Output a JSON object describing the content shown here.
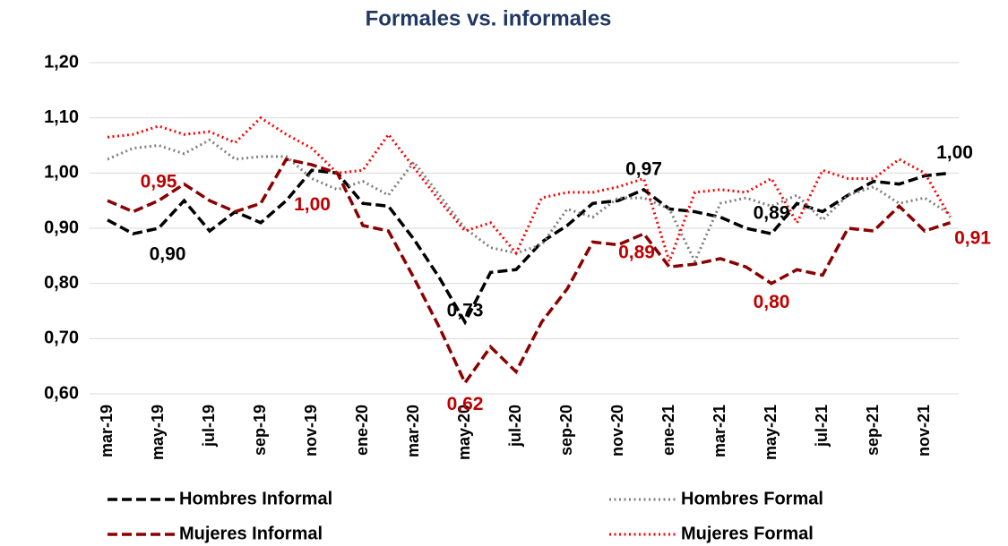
{
  "chart_data": {
    "type": "line",
    "title": "Formales vs. informales",
    "categories": [
      "mar-19",
      null,
      "may-19",
      null,
      "jul-19",
      null,
      "sep-19",
      null,
      "nov-19",
      null,
      "ene-20",
      null,
      "mar-20",
      null,
      "may-20",
      null,
      "jul-20",
      null,
      "sep-20",
      null,
      "nov-20",
      null,
      "ene-21",
      null,
      "mar-21",
      null,
      "may-21",
      null,
      "jul-21",
      null,
      "sep-21",
      null,
      "nov-21",
      null
    ],
    "ylim": [
      0.6,
      1.2
    ],
    "yticks": [
      {
        "value": 0.6,
        "label": "0,60"
      },
      {
        "value": 0.7,
        "label": "0,70"
      },
      {
        "value": 0.8,
        "label": "0,80"
      },
      {
        "value": 0.9,
        "label": "0,90"
      },
      {
        "value": 1.0,
        "label": "1,00"
      },
      {
        "value": 1.1,
        "label": "1,10"
      },
      {
        "value": 1.2,
        "label": "1,20"
      }
    ],
    "grid": true,
    "series": [
      {
        "name": "Hombres Informal",
        "color": "#000000",
        "style": "dashed",
        "values": [
          0.915,
          0.89,
          0.9,
          0.95,
          0.895,
          0.93,
          0.91,
          0.95,
          1.005,
          1.0,
          0.945,
          0.94,
          0.88,
          0.81,
          0.73,
          0.82,
          0.825,
          0.875,
          0.905,
          0.945,
          0.95,
          0.97,
          0.935,
          0.93,
          0.92,
          0.9,
          0.89,
          0.945,
          0.93,
          0.96,
          0.985,
          0.98,
          0.995,
          1.0
        ],
        "value_labels": [
          null,
          null,
          "0,90",
          null,
          null,
          null,
          null,
          null,
          null,
          null,
          null,
          null,
          null,
          null,
          "0,73",
          null,
          null,
          null,
          null,
          null,
          null,
          "0,97",
          null,
          null,
          null,
          null,
          "0,89",
          null,
          null,
          null,
          null,
          null,
          null,
          "1,00"
        ]
      },
      {
        "name": "Hombres Formal",
        "color": "#7f7f7f",
        "style": "dotted",
        "values": [
          1.025,
          1.045,
          1.05,
          1.035,
          1.06,
          1.025,
          1.03,
          1.03,
          0.99,
          0.97,
          0.985,
          0.96,
          1.02,
          0.96,
          0.9,
          0.865,
          0.855,
          0.87,
          0.935,
          0.92,
          0.955,
          0.955,
          0.935,
          0.84,
          0.945,
          0.955,
          0.94,
          0.96,
          0.915,
          0.96,
          0.975,
          0.945,
          0.955,
          0.925
        ]
      },
      {
        "name": "Mujeres Informal",
        "color": "#8b0000",
        "style": "dashed",
        "values": [
          0.95,
          0.93,
          0.95,
          0.98,
          0.95,
          0.93,
          0.945,
          1.025,
          1.015,
          1.0,
          0.905,
          0.895,
          0.81,
          0.72,
          0.62,
          0.685,
          0.64,
          0.73,
          0.79,
          0.875,
          0.87,
          0.89,
          0.83,
          0.835,
          0.845,
          0.83,
          0.8,
          0.825,
          0.815,
          0.9,
          0.895,
          0.94,
          0.895,
          0.91
        ],
        "value_labels": [
          null,
          null,
          "0,95",
          null,
          null,
          null,
          null,
          null,
          null,
          "1,00",
          null,
          null,
          null,
          null,
          "0,62",
          null,
          null,
          null,
          null,
          null,
          null,
          "0,89",
          null,
          null,
          null,
          null,
          "0,80",
          null,
          null,
          null,
          null,
          null,
          null,
          "0,91"
        ]
      },
      {
        "name": "Mujeres Formal",
        "color": "#ff0000",
        "style": "dotted",
        "values": [
          1.065,
          1.07,
          1.085,
          1.07,
          1.075,
          1.055,
          1.1,
          1.07,
          1.045,
          1.0,
          1.005,
          1.07,
          1.01,
          0.95,
          0.895,
          0.91,
          0.855,
          0.955,
          0.965,
          0.965,
          0.975,
          0.99,
          0.84,
          0.965,
          0.97,
          0.965,
          0.99,
          0.91,
          1.005,
          0.99,
          0.99,
          1.025,
          1.0,
          0.92
        ]
      }
    ]
  }
}
